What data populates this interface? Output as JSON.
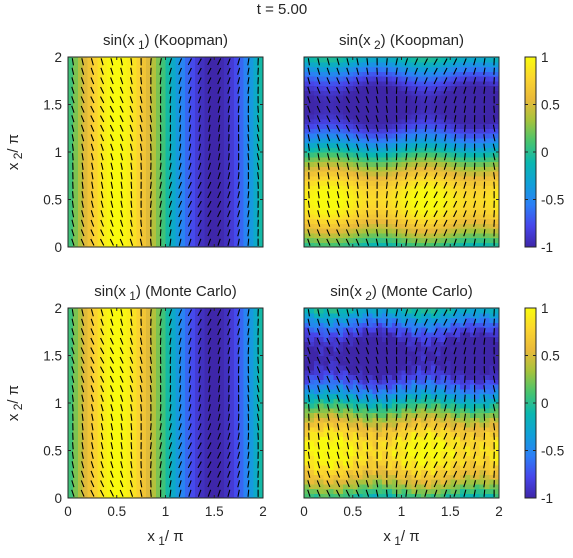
{
  "figure": {
    "suptitle": "t = 5.00"
  },
  "colorbar": {
    "ticks": [
      1,
      0.5,
      0,
      -0.5,
      -1
    ],
    "tick_labels": [
      "1",
      "0.5",
      "0",
      "-0.5",
      "-1"
    ],
    "range": [
      -1,
      1
    ],
    "colormap": "parula",
    "colormap_stops": [
      "#3e26a8",
      "#4746eb",
      "#2c7ff6",
      "#10a0d8",
      "#0ab7b0",
      "#48c46e",
      "#a5c33c",
      "#e9b93a",
      "#fbd52f",
      "#f9fb0e"
    ]
  },
  "chart_data": [
    {
      "type": "heatmap",
      "panel": "top-left",
      "title_parts": [
        "sin(x",
        "1",
        ") (Koopman)"
      ],
      "xlabel_parts": [
        "",
        "",
        ""
      ],
      "ylabel_parts": [
        "x",
        "2",
        "/ π"
      ],
      "xlim": [
        0,
        2
      ],
      "ylim": [
        0,
        2
      ],
      "xticks": [
        0,
        0.5,
        1,
        1.5,
        2
      ],
      "xtick_labels": [],
      "yticks": [
        0,
        0.5,
        1,
        1.5,
        2
      ],
      "ytick_labels": [
        "0",
        "0.5",
        "1",
        "1.5",
        "2"
      ],
      "field": "sin(pi*x1)",
      "overlay": "direction-field"
    },
    {
      "type": "heatmap",
      "panel": "top-right",
      "title_parts": [
        "sin(x",
        "2",
        ") (Koopman)"
      ],
      "xlabel_parts": [
        "",
        "",
        ""
      ],
      "ylabel_parts": [
        "",
        "",
        ""
      ],
      "xlim": [
        0,
        2
      ],
      "ylim": [
        0,
        2
      ],
      "xticks": [
        0,
        0.5,
        1,
        1.5,
        2
      ],
      "xtick_labels": [],
      "yticks": [
        0,
        0.5,
        1,
        1.5,
        2
      ],
      "ytick_labels": [],
      "field": "sin(pi*x2)",
      "overlay": "direction-field",
      "colorbar": true
    },
    {
      "type": "heatmap",
      "panel": "bottom-left",
      "title_parts": [
        "sin(x",
        "1",
        ") (Monte Carlo)"
      ],
      "xlabel_parts": [
        "x",
        "1",
        "/ π"
      ],
      "ylabel_parts": [
        "x",
        "2",
        "/ π"
      ],
      "xlim": [
        0,
        2
      ],
      "ylim": [
        0,
        2
      ],
      "xticks": [
        0,
        0.5,
        1,
        1.5,
        2
      ],
      "xtick_labels": [
        "0",
        "0.5",
        "1",
        "1.5",
        "2"
      ],
      "yticks": [
        0,
        0.5,
        1,
        1.5,
        2
      ],
      "ytick_labels": [
        "0",
        "0.5",
        "1",
        "1.5",
        "2"
      ],
      "field": "sin(pi*x1)",
      "overlay": "direction-field"
    },
    {
      "type": "heatmap",
      "panel": "bottom-right",
      "title_parts": [
        "sin(x",
        "2",
        ") (Monte Carlo)"
      ],
      "xlabel_parts": [
        "x",
        "1",
        "/ π"
      ],
      "ylabel_parts": [
        "",
        "",
        ""
      ],
      "xlim": [
        0,
        2
      ],
      "ylim": [
        0,
        2
      ],
      "xticks": [
        0,
        0.5,
        1,
        1.5,
        2
      ],
      "xtick_labels": [
        "0",
        "0.5",
        "1",
        "1.5",
        "2"
      ],
      "yticks": [
        0,
        0.5,
        1,
        1.5,
        2
      ],
      "ytick_labels": [],
      "field": "sin(pi*x2)",
      "overlay": "direction-field",
      "noise": true,
      "colorbar": true
    }
  ]
}
